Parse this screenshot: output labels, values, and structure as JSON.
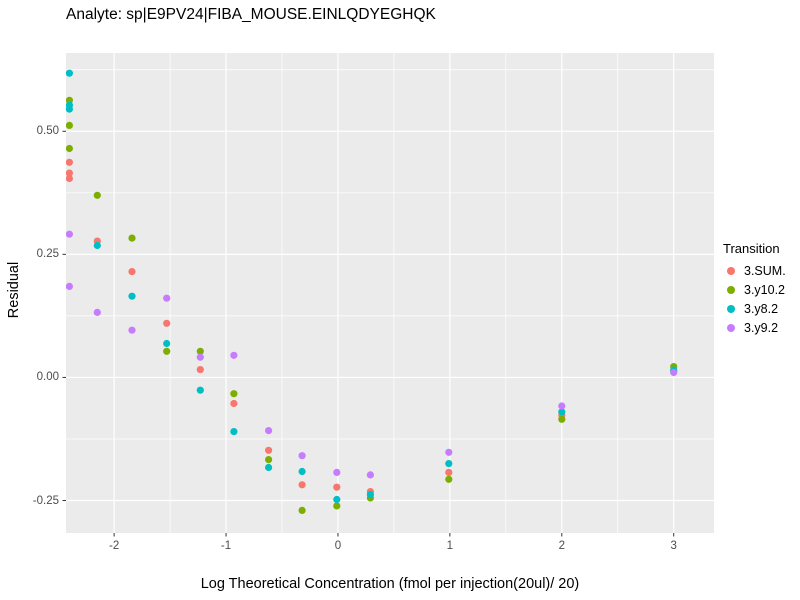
{
  "title": "Analyte: sp|E9PV24|FIBA_MOUSE.EINLQDYEGHQK",
  "chart_data": {
    "type": "scatter",
    "title": "Analyte: sp|E9PV24|FIBA_MOUSE.EINLQDYEGHQK",
    "xlabel": "Log Theoretical Concentration (fmol per injection(20ul)/ 20)",
    "ylabel": "Residual",
    "xlim": [
      -2.43,
      3.36
    ],
    "ylim": [
      -0.316,
      0.659
    ],
    "grid": true,
    "panel_bg": "#EBEBEB",
    "grid_color": "#FFFFFF",
    "tick_color": "#333333",
    "tick_label_color": "#4D4D4D",
    "x_ticks": [
      {
        "v": -2,
        "label": "-2"
      },
      {
        "v": -1,
        "label": "-1"
      },
      {
        "v": 0,
        "label": "0"
      },
      {
        "v": 1,
        "label": "1"
      },
      {
        "v": 2,
        "label": "2"
      },
      {
        "v": 3,
        "label": "3"
      }
    ],
    "y_ticks": [
      {
        "v": -0.25,
        "label": "-0.25"
      },
      {
        "v": 0.0,
        "label": "0.00"
      },
      {
        "v": 0.25,
        "label": "0.25"
      },
      {
        "v": 0.5,
        "label": "0.50"
      }
    ],
    "x_minor": [
      -1.5,
      -0.5,
      0.5,
      1.5,
      2.5
    ],
    "y_minor": [
      -0.125,
      0.125,
      0.375,
      0.625
    ],
    "legend_title": "Transition",
    "legend_position": "right",
    "point_radius": 3.6,
    "series": [
      {
        "name": "3.SUM.",
        "color": "#F8766D",
        "points": [
          [
            -2.4,
            0.437
          ],
          [
            -2.4,
            0.415
          ],
          [
            -2.4,
            0.404
          ],
          [
            -2.15,
            0.277
          ],
          [
            -1.84,
            0.215
          ],
          [
            -1.53,
            0.11
          ],
          [
            -1.23,
            0.016
          ],
          [
            -0.93,
            -0.053
          ],
          [
            -0.62,
            -0.148
          ],
          [
            -0.32,
            -0.218
          ],
          [
            -0.01,
            -0.223
          ],
          [
            0.29,
            -0.232
          ],
          [
            0.99,
            -0.193
          ],
          [
            2.0,
            -0.077
          ],
          [
            3.0,
            0.013
          ]
        ]
      },
      {
        "name": "3.y10.2",
        "color": "#7CAE00",
        "points": [
          [
            -2.4,
            0.563
          ],
          [
            -2.4,
            0.512
          ],
          [
            -2.4,
            0.465
          ],
          [
            -2.15,
            0.37
          ],
          [
            -1.84,
            0.283
          ],
          [
            -1.53,
            0.053
          ],
          [
            -1.23,
            0.053
          ],
          [
            -0.93,
            -0.033
          ],
          [
            -0.62,
            -0.167
          ],
          [
            -0.32,
            -0.27
          ],
          [
            -0.01,
            -0.261
          ],
          [
            0.29,
            -0.245
          ],
          [
            0.99,
            -0.207
          ],
          [
            2.0,
            -0.085
          ],
          [
            3.0,
            0.022
          ]
        ]
      },
      {
        "name": "3.y8.2",
        "color": "#00BFC4",
        "points": [
          [
            -2.4,
            0.618
          ],
          [
            -2.4,
            0.553
          ],
          [
            -2.4,
            0.545
          ],
          [
            -2.15,
            0.268
          ],
          [
            -1.84,
            0.165
          ],
          [
            -1.53,
            0.069
          ],
          [
            -1.23,
            -0.026
          ],
          [
            -0.93,
            -0.11
          ],
          [
            -0.62,
            -0.183
          ],
          [
            -0.32,
            -0.191
          ],
          [
            -0.01,
            -0.248
          ],
          [
            0.29,
            -0.238
          ],
          [
            0.99,
            -0.175
          ],
          [
            2.0,
            -0.07
          ],
          [
            3.0,
            0.015
          ]
        ]
      },
      {
        "name": "3.y9.2",
        "color": "#C77CFF",
        "points": [
          [
            -2.4,
            0.291
          ],
          [
            -2.4,
            0.185
          ],
          [
            -2.15,
            0.132
          ],
          [
            -1.84,
            0.096
          ],
          [
            -1.53,
            0.161
          ],
          [
            -1.23,
            0.041
          ],
          [
            -0.93,
            0.045
          ],
          [
            -0.62,
            -0.108
          ],
          [
            -0.32,
            -0.159
          ],
          [
            -0.01,
            -0.193
          ],
          [
            0.29,
            -0.198
          ],
          [
            0.99,
            -0.152
          ],
          [
            2.0,
            -0.058
          ],
          [
            3.0,
            0.01
          ]
        ]
      }
    ]
  }
}
